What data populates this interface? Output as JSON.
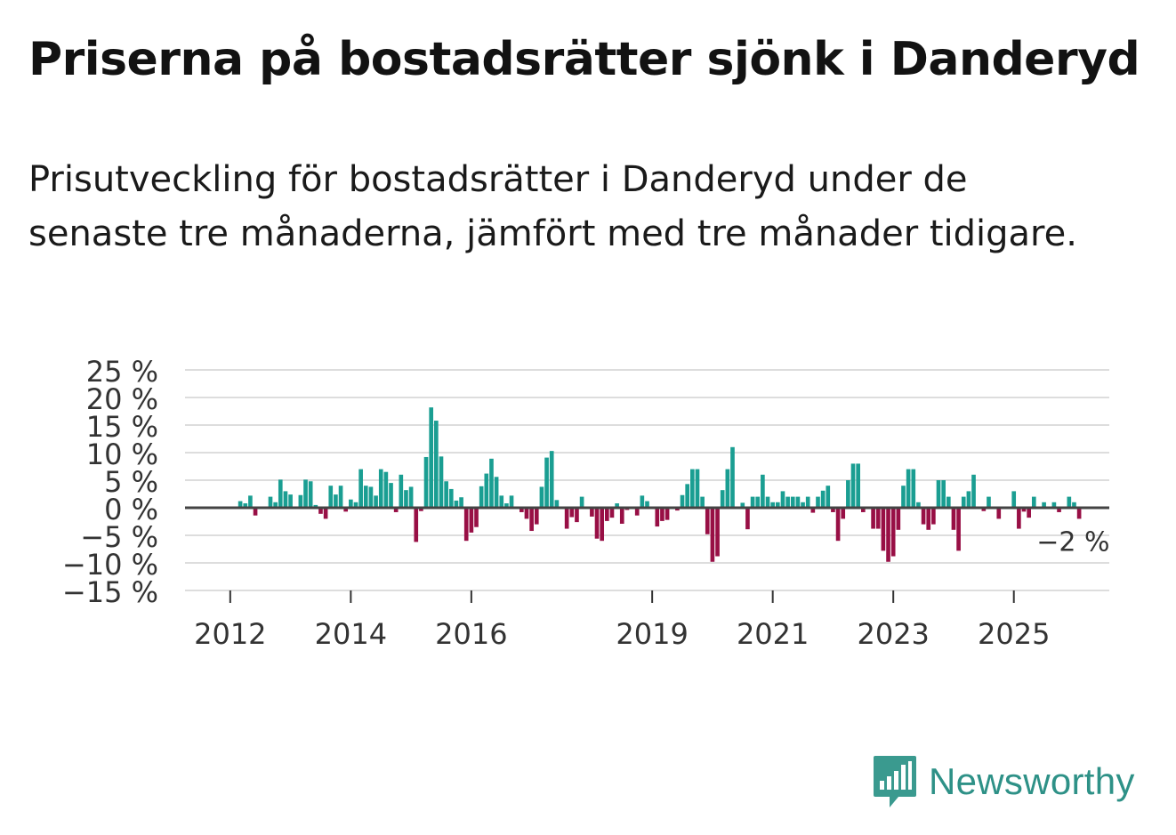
{
  "title": "Priserna på bostadsrätter sjönk i Danderyd",
  "subtitle": "Prisutveckling för bostadsrätter i Danderyd under de senaste tre månaderna, jämfört med tre månader tidigare.",
  "brand": {
    "name": "Newsworthy",
    "icon": "newsworthy-bar-chart-icon",
    "color": "#3a9a8f"
  },
  "colors": {
    "positive": "#1a9e92",
    "negative": "#980f45",
    "grid": "#dddddd",
    "zero_line": "#444444"
  },
  "chart_data": {
    "type": "bar",
    "title": "Priserna på bostadsrätter sjönk i Danderyd",
    "subtitle": "Prisutveckling för bostadsrätter i Danderyd under de senaste tre månaderna, jämfört med tre månader tidigare.",
    "xlabel": "",
    "ylabel": "",
    "ylim": [
      -15,
      25
    ],
    "y_ticks": [
      25,
      20,
      15,
      10,
      5,
      0,
      -5,
      -10,
      -15
    ],
    "y_tick_labels": [
      "25 %",
      "20 %",
      "15 %",
      "10 %",
      "5 %",
      "0 %",
      "−5 %",
      "−10 %",
      "−15 %"
    ],
    "x_ticks": [
      {
        "label": "2012",
        "month_index": 12
      },
      {
        "label": "2014",
        "month_index": 36
      },
      {
        "label": "2016",
        "month_index": 60
      },
      {
        "label": "2019",
        "month_index": 96
      },
      {
        "label": "2021",
        "month_index": 120
      },
      {
        "label": "2023",
        "month_index": 144
      },
      {
        "label": "2025",
        "month_index": 168
      }
    ],
    "x_range": [
      3,
      187
    ],
    "start": "2011-01",
    "frequency": "monthly",
    "grid": true,
    "annotation": {
      "label": "−2 %",
      "month_index": 177,
      "value": -2
    },
    "series": [
      {
        "name": "Prisutveckling",
        "values": [
          null,
          null,
          null,
          null,
          null,
          null,
          null,
          null,
          null,
          null,
          null,
          null,
          0,
          0,
          1.2,
          0.8,
          2.2,
          -1.4,
          0,
          0,
          2,
          1,
          5.1,
          3,
          2.4,
          0,
          2.3,
          5.1,
          4.8,
          0.5,
          -1.1,
          -2,
          4,
          2.4,
          4,
          -0.7,
          1.5,
          1,
          7,
          4,
          3.8,
          2.2,
          7,
          6.5,
          4.5,
          -0.8,
          6,
          3.2,
          3.8,
          -6.2,
          -0.6,
          9.2,
          18.2,
          15.8,
          9.3,
          4.8,
          3.4,
          1.3,
          1.9,
          -6,
          -4.5,
          -3.5,
          3.9,
          6.2,
          8.9,
          5.6,
          2.2,
          0.8,
          2.2,
          0,
          -0.8,
          -2,
          -4.2,
          -3,
          3.8,
          9.1,
          10.3,
          1.4,
          0,
          -3.8,
          -1.7,
          -2.6,
          2,
          0,
          -1.6,
          -5.6,
          -6,
          -2.4,
          -1.8,
          0.8,
          -2.9,
          -0.4,
          0,
          -1.4,
          2.2,
          1.2,
          0,
          -3.4,
          -2.4,
          -2.2,
          0,
          -0.5,
          2.3,
          4.3,
          7,
          7,
          2,
          -4.8,
          -9.8,
          -8.8,
          3.2,
          7,
          11,
          0,
          0.9,
          -3.9,
          2,
          2,
          6,
          2,
          1,
          1,
          3,
          2,
          2,
          2,
          1,
          2,
          -0.9,
          2,
          3.1,
          4,
          -0.8,
          -6,
          -2,
          5,
          8,
          8,
          -0.8,
          0,
          -3.8,
          -3.8,
          -7.8,
          -9.8,
          -8.8,
          -4,
          4,
          7,
          7,
          1,
          -3,
          -4,
          -3,
          5,
          5,
          2,
          -4,
          -7.8,
          2,
          3,
          6,
          0,
          -0.6,
          2,
          0,
          -2,
          0,
          0,
          3,
          -3.8,
          -0.7,
          -1.8,
          2,
          0,
          1,
          0,
          1,
          -0.8,
          0,
          2,
          1,
          -2
        ]
      }
    ]
  }
}
